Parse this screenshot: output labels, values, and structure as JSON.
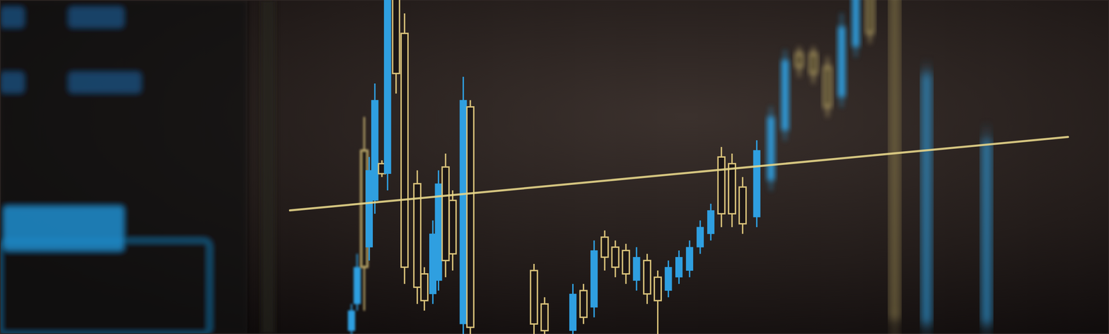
{
  "chart_data": {
    "type": "candlestick",
    "x": [
      497,
      505,
      515,
      522,
      530,
      540,
      548,
      560,
      572,
      590,
      600,
      612,
      620,
      630,
      640,
      655,
      665,
      755,
      770,
      810,
      825,
      840,
      855,
      870,
      885,
      900,
      915,
      930,
      945,
      960,
      975,
      990,
      1005,
      1020,
      1035,
      1050,
      1070,
      1090,
      1110,
      1130,
      1150,
      1170,
      1190,
      1210,
      1230,
      1265,
      1310,
      1395
    ],
    "open": [
      1,
      9,
      55,
      26,
      40,
      51,
      48,
      102,
      90,
      45,
      18,
      12,
      16,
      50,
      40,
      3,
      68,
      19,
      9,
      1,
      13,
      8,
      29,
      26,
      25,
      16,
      22,
      17,
      13,
      17,
      19,
      26,
      30,
      53,
      51,
      44,
      35,
      46,
      61,
      84,
      84,
      80,
      71,
      86,
      102,
      102,
      3,
      3
    ],
    "high": [
      9,
      24,
      65,
      53,
      75,
      52,
      105,
      104,
      96,
      49,
      20,
      34,
      49,
      54,
      43,
      77,
      70,
      21,
      11,
      15,
      15,
      28,
      31,
      28,
      27,
      26,
      24,
      19,
      22,
      25,
      28,
      34,
      39,
      56,
      54,
      47,
      58,
      68,
      85,
      86,
      86,
      83,
      96,
      104,
      104,
      104,
      81,
      62
    ],
    "low": [
      -1,
      7,
      7,
      22,
      36,
      47,
      43,
      72,
      15,
      9,
      7,
      9,
      13,
      17,
      19,
      -2,
      -2,
      -2,
      -2,
      -2,
      3,
      5,
      19,
      17,
      15,
      13,
      9,
      0,
      11,
      15,
      17,
      24,
      28,
      32,
      32,
      30,
      32,
      43,
      58,
      77,
      75,
      65,
      68,
      83,
      87,
      -2,
      -2,
      -2
    ],
    "close": [
      7,
      20,
      20,
      49,
      70,
      48,
      102,
      78,
      20,
      14,
      10,
      30,
      45,
      22,
      24,
      70,
      2,
      3,
      1,
      12,
      5,
      25,
      23,
      20,
      18,
      23,
      12,
      10,
      20,
      23,
      26,
      32,
      37,
      36,
      36,
      33,
      55,
      65,
      82,
      80,
      78,
      68,
      92,
      102,
      90,
      5,
      78,
      58
    ],
    "trend_line": {
      "x": [
        410,
        1510
      ],
      "y": [
        37,
        59
      ]
    },
    "xlim": [
      0,
      1568
    ],
    "ylim": [
      0,
      100
    ],
    "tick_labels": false,
    "grid": false
  }
}
